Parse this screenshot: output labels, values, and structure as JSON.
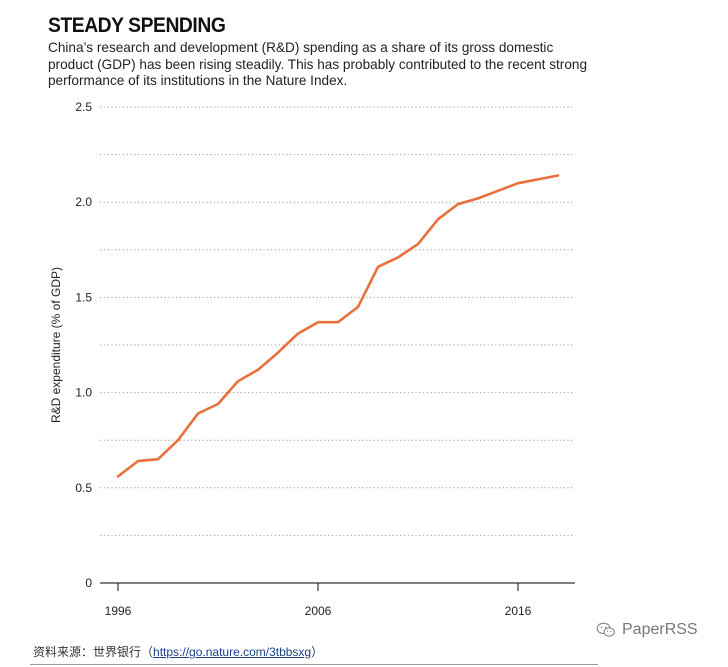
{
  "header": {
    "title": "STEADY SPENDING",
    "subtitle": "China’s research and development (R&D) spending as a share of its gross domestic product (GDP) has been rising steadily. This has probably contributed to the recent strong performance of its institutions in the Nature Index."
  },
  "footer": {
    "source_prefix": "资料来源：世界银行（",
    "source_link": "https://go.nature.com/3tbbsxg",
    "source_suffix": "）"
  },
  "watermark": {
    "text": "PaperRSS",
    "icon": "wechat-icon"
  },
  "colors": {
    "line": "#E8703A",
    "grid": "#999999",
    "axis": "#333333"
  },
  "chart_data": {
    "type": "line",
    "title": "",
    "xlabel": "",
    "ylabel": "R&D expenditure (% of GDP)",
    "xlim": [
      1996,
      2018
    ],
    "ylim": [
      0,
      2.5
    ],
    "x_ticks": [
      1996,
      2006,
      2016
    ],
    "y_ticks": [
      0,
      0.5,
      1.0,
      1.5,
      2.0,
      2.5
    ],
    "y_tick_labels": [
      "0",
      "0.5",
      "1.0",
      "1.5",
      "2.0",
      "2.5"
    ],
    "grid": true,
    "series": [
      {
        "x": [
          1996,
          1997,
          1998,
          1999,
          2000,
          2001,
          2002,
          2003,
          2004,
          2005,
          2006,
          2007,
          2008,
          2009,
          2010,
          2011,
          2012,
          2013,
          2014,
          2015,
          2016,
          2017,
          2018
        ],
        "values": [
          0.56,
          0.64,
          0.65,
          0.75,
          0.89,
          0.94,
          1.06,
          1.12,
          1.21,
          1.31,
          1.37,
          1.37,
          1.45,
          1.66,
          1.71,
          1.78,
          1.91,
          1.99,
          2.02,
          2.06,
          2.1,
          2.12,
          2.14
        ]
      }
    ]
  }
}
